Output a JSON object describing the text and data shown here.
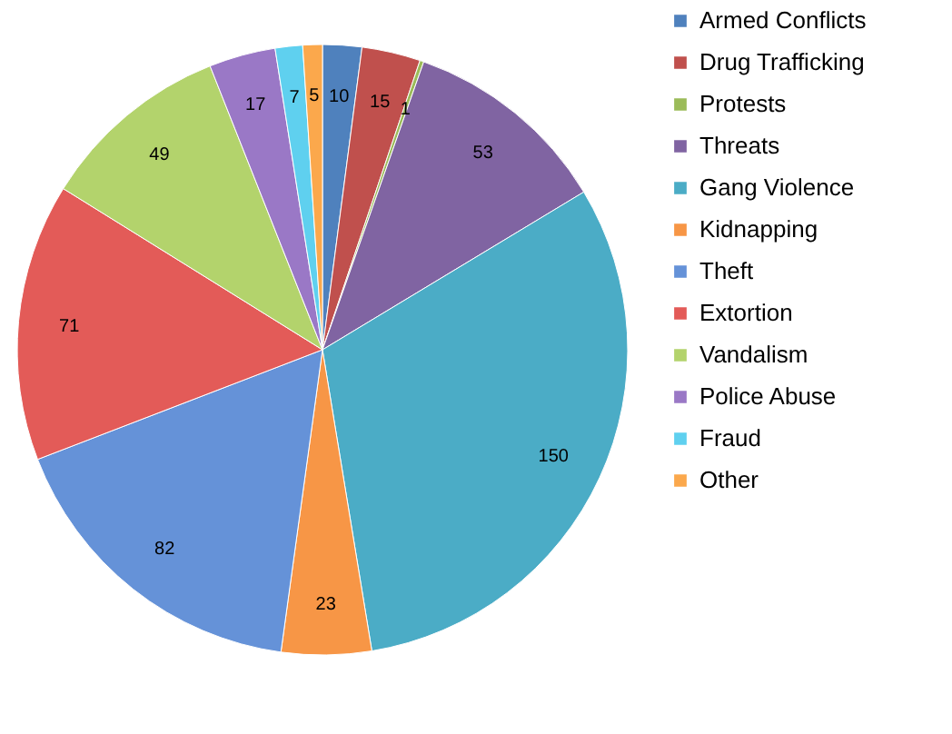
{
  "chart_data": {
    "type": "pie",
    "categories": [
      "Armed Conflicts",
      "Drug Trafficking",
      "Protests",
      "Threats",
      "Gang Violence",
      "Kidnapping",
      "Theft",
      "Extortion",
      "Vandalism",
      "Police Abuse",
      "Fraud",
      "Other"
    ],
    "values": [
      10,
      15,
      1,
      53,
      150,
      23,
      82,
      71,
      49,
      17,
      7,
      5
    ],
    "colors": [
      "#4f81bd",
      "#c0504d",
      "#9bbb59",
      "#8064a2",
      "#4bacc6",
      "#f79646",
      "#6592d8",
      "#e35b58",
      "#b3d36c",
      "#9a78c6",
      "#5fd0ef",
      "#fba84c"
    ],
    "data_labels": true,
    "legend": "right"
  }
}
